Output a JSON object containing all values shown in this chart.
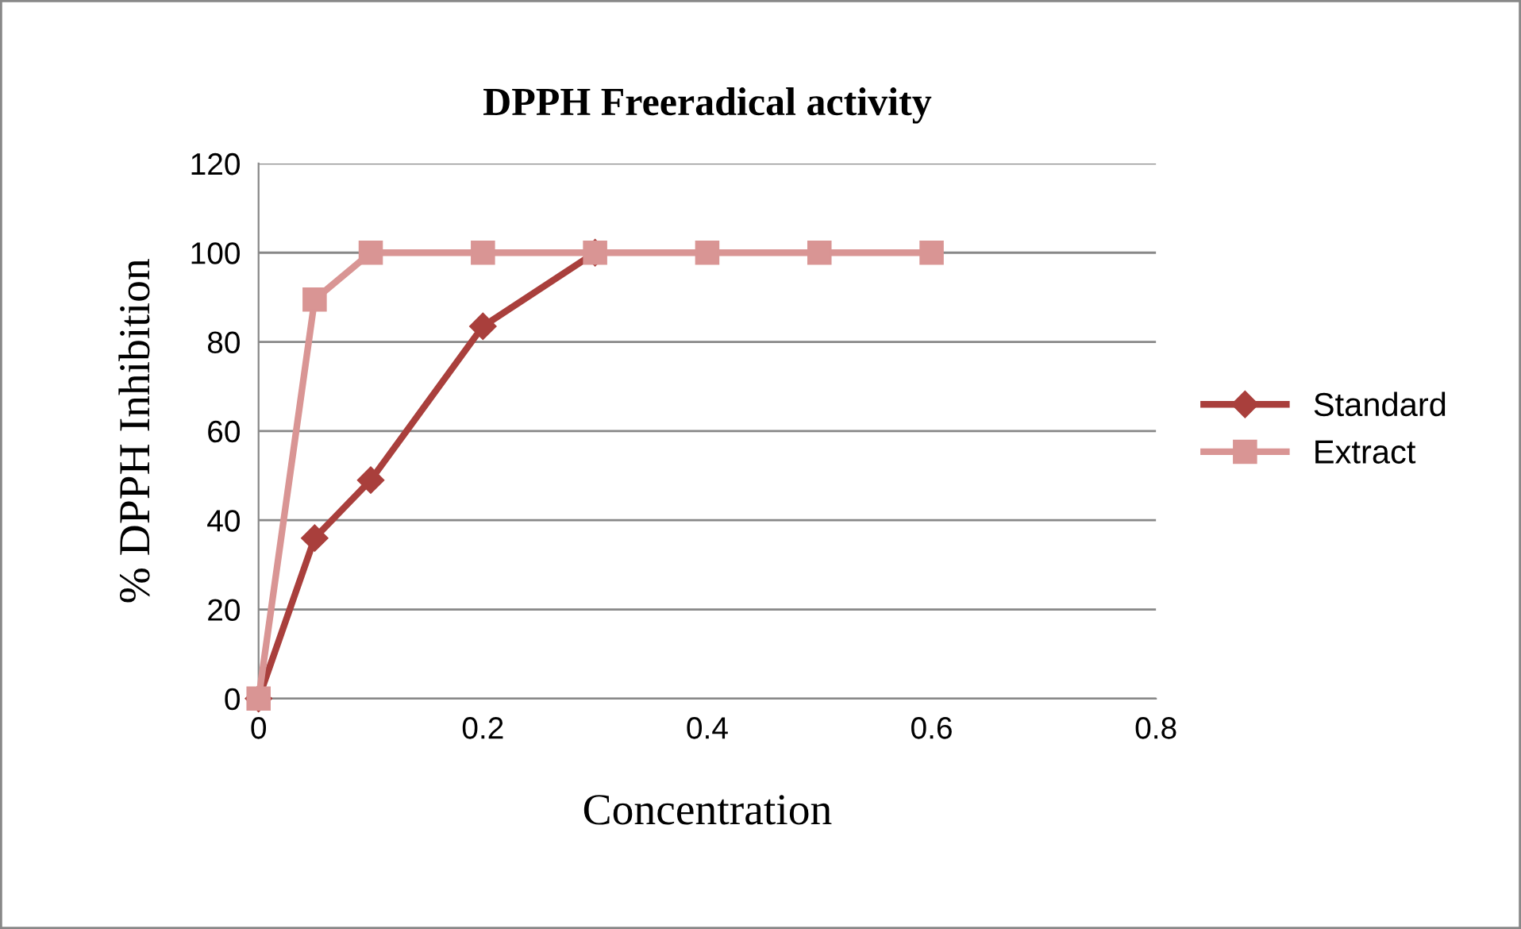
{
  "chart_data": {
    "type": "line",
    "title": "DPPH Freeradical activity",
    "xlabel": "Concentration",
    "ylabel": "% DPPH Inhibition",
    "series": [
      {
        "name": "Standard",
        "color": "#a93f3c",
        "marker": "diamond",
        "x": [
          0,
          0.05,
          0.1,
          0.2,
          0.3
        ],
        "values": [
          0,
          36,
          49,
          83.5,
          100
        ]
      },
      {
        "name": "Extract",
        "color": "#d99594",
        "marker": "square",
        "x": [
          0,
          0.05,
          0.1,
          0.2,
          0.3,
          0.4,
          0.5,
          0.6
        ],
        "values": [
          0,
          89.5,
          100,
          100,
          100,
          100,
          100,
          100
        ]
      }
    ],
    "xlim": [
      0,
      0.8
    ],
    "xticks": [
      0,
      0.2,
      0.4,
      0.6,
      0.8
    ],
    "ylim": [
      0,
      120
    ],
    "yticks": [
      0,
      20,
      40,
      60,
      80,
      100,
      120
    ],
    "grid": "y",
    "legend": "right",
    "line_style": "solid"
  }
}
